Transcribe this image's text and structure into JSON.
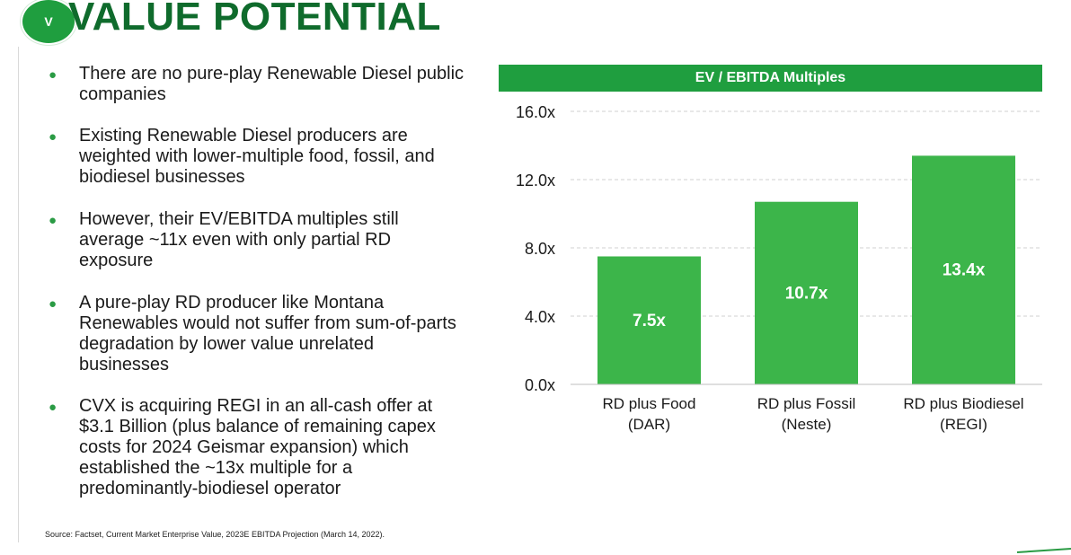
{
  "header": {
    "badge": "V",
    "title": "VALUE POTENTIAL"
  },
  "bullets": [
    "There are no pure-play Renewable Diesel public companies",
    "Existing Renewable Diesel producers are weighted with lower-multiple food, fossil, and biodiesel businesses",
    "However, their EV/EBITDA multiples still average ~11x even with only partial RD exposure",
    "A pure-play RD producer like Montana Renewables would not suffer from sum-of-parts degradation by lower value unrelated businesses",
    "CVX is acquiring REGI in an all-cash offer at $3.1 Billion (plus balance of remaining capex costs for 2024 Geismar expansion) which established the ~13x multiple for a predominantly-biodiesel operator"
  ],
  "chart_data": {
    "type": "bar",
    "title": "EV / EBITDA Multiples",
    "categories": [
      [
        "RD plus Food",
        "(DAR)"
      ],
      [
        "RD plus Fossil",
        "(Neste)"
      ],
      [
        "RD plus Biodiesel",
        "(REGI)"
      ]
    ],
    "values": [
      7.5,
      10.7,
      13.4
    ],
    "value_labels": [
      "7.5x",
      "10.7x",
      "13.4x"
    ],
    "yticks": [
      "0.0x",
      "4.0x",
      "8.0x",
      "12.0x",
      "16.0x"
    ],
    "ylim": [
      0,
      16
    ],
    "grid": true,
    "colors": {
      "bar": "#3cb54a",
      "header": "#1f9e3f",
      "grid": "#d0d0d0"
    }
  },
  "footer": {
    "source": "Source: Factset, Current Market Enterprise Value, 2023E EBITDA Projection (March 14, 2022)."
  }
}
